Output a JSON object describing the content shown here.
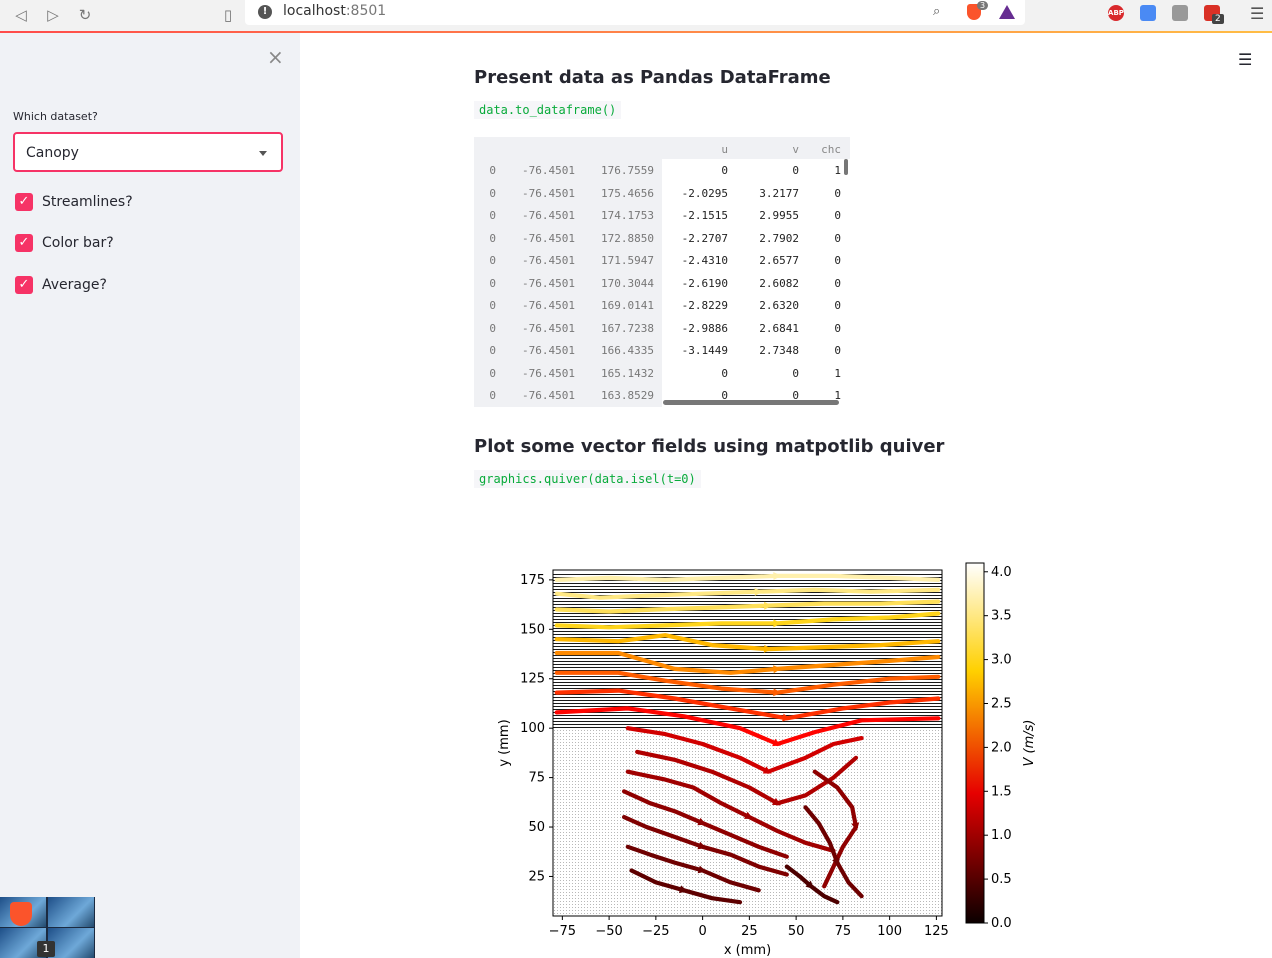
{
  "browser": {
    "url_host": "localhost",
    "url_port": ":8501",
    "brave_badge": "3",
    "ext_abp": "ABP",
    "ext_badge": "2"
  },
  "sidebar": {
    "select_label": "Which dataset?",
    "select_value": "Canopy",
    "checkboxes": [
      {
        "label": "Streamlines?",
        "checked": true
      },
      {
        "label": "Color bar?",
        "checked": true
      },
      {
        "label": "Average?",
        "checked": true
      }
    ],
    "taskbar_count": "1"
  },
  "main": {
    "section1_title": "Present data as Pandas DataFrame",
    "section1_code": "data.to_dataframe()",
    "section2_title": "Plot some vector fields using matpotlib quiver",
    "section2_code": "graphics.quiver(data.isel(t=0)"
  },
  "dataframe": {
    "columns": [
      "u",
      "v",
      "chc"
    ],
    "rows": [
      [
        "0",
        "-76.4501",
        "176.7559",
        "0",
        "0",
        "1"
      ],
      [
        "0",
        "-76.4501",
        "175.4656",
        "-2.0295",
        "3.2177",
        "0"
      ],
      [
        "0",
        "-76.4501",
        "174.1753",
        "-2.1515",
        "2.9955",
        "0"
      ],
      [
        "0",
        "-76.4501",
        "172.8850",
        "-2.2707",
        "2.7902",
        "0"
      ],
      [
        "0",
        "-76.4501",
        "171.5947",
        "-2.4310",
        "2.6577",
        "0"
      ],
      [
        "0",
        "-76.4501",
        "170.3044",
        "-2.6190",
        "2.6082",
        "0"
      ],
      [
        "0",
        "-76.4501",
        "169.0141",
        "-2.8229",
        "2.6320",
        "0"
      ],
      [
        "0",
        "-76.4501",
        "167.7238",
        "-2.9886",
        "2.6841",
        "0"
      ],
      [
        "0",
        "-76.4501",
        "166.4335",
        "-3.1449",
        "2.7348",
        "0"
      ],
      [
        "0",
        "-76.4501",
        "165.1432",
        "0",
        "0",
        "1"
      ],
      [
        "0",
        "-76.4501",
        "163.8529",
        "0",
        "0",
        "1"
      ]
    ]
  },
  "chart_data": {
    "type": "scatter",
    "xlabel": "x (mm)",
    "ylabel": "y (mm)",
    "xlim": [
      -80,
      128
    ],
    "ylim": [
      5,
      180
    ],
    "xticks": [
      -75,
      -50,
      -25,
      0,
      25,
      50,
      75,
      100,
      125
    ],
    "yticks": [
      25,
      50,
      75,
      100,
      125,
      150,
      175
    ],
    "colorbar": {
      "label": "V (m/s)",
      "ticks": [
        0.0,
        0.5,
        1.0,
        1.5,
        2.0,
        2.5,
        3.0,
        3.5,
        4.0
      ],
      "tick_labels": [
        "0.0",
        "0.5",
        "1.0",
        "1.5",
        "2.0",
        "2.5",
        "3.0",
        "3.5",
        "4.0"
      ],
      "range": [
        0,
        4.1
      ],
      "colormap": "hot"
    },
    "canopy_top_y": 100,
    "canopy_x_range": [
      -45,
      90
    ],
    "field_x_range": [
      -80,
      128
    ],
    "field_y_range": [
      5,
      178
    ],
    "streamlines": [
      {
        "v": 3.7,
        "points": [
          [
            -78,
            175
          ],
          [
            -50,
            176
          ],
          [
            -20,
            175
          ],
          [
            10,
            176
          ],
          [
            40,
            177
          ],
          [
            70,
            177
          ],
          [
            100,
            176
          ],
          [
            126,
            175
          ]
        ]
      },
      {
        "v": 3.5,
        "points": [
          [
            -78,
            168
          ],
          [
            -55,
            166
          ],
          [
            -30,
            167
          ],
          [
            0,
            168
          ],
          [
            30,
            169
          ],
          [
            60,
            170
          ],
          [
            90,
            169
          ],
          [
            126,
            170
          ]
        ]
      },
      {
        "v": 3.3,
        "points": [
          [
            -78,
            160
          ],
          [
            -50,
            159
          ],
          [
            -25,
            160
          ],
          [
            5,
            161
          ],
          [
            35,
            162
          ],
          [
            65,
            163
          ],
          [
            95,
            163
          ],
          [
            126,
            164
          ]
        ]
      },
      {
        "v": 3.0,
        "points": [
          [
            -78,
            152
          ],
          [
            -50,
            151
          ],
          [
            -20,
            152
          ],
          [
            10,
            153
          ],
          [
            40,
            153
          ],
          [
            70,
            155
          ],
          [
            100,
            156
          ],
          [
            126,
            158
          ]
        ]
      },
      {
        "v": 2.7,
        "points": [
          [
            -78,
            145
          ],
          [
            -45,
            144
          ],
          [
            -20,
            147
          ],
          [
            5,
            142
          ],
          [
            35,
            140
          ],
          [
            65,
            141
          ],
          [
            95,
            142
          ],
          [
            126,
            144
          ]
        ]
      },
      {
        "v": 2.4,
        "points": [
          [
            -78,
            138
          ],
          [
            -45,
            138
          ],
          [
            -15,
            130
          ],
          [
            15,
            128
          ],
          [
            40,
            130
          ],
          [
            70,
            132
          ],
          [
            100,
            134
          ],
          [
            126,
            136
          ]
        ]
      },
      {
        "v": 2.1,
        "points": [
          [
            -78,
            128
          ],
          [
            -45,
            128
          ],
          [
            -20,
            124
          ],
          [
            10,
            120
          ],
          [
            40,
            118
          ],
          [
            70,
            122
          ],
          [
            100,
            125
          ],
          [
            126,
            126
          ]
        ]
      },
      {
        "v": 1.8,
        "points": [
          [
            -78,
            118
          ],
          [
            -45,
            119
          ],
          [
            -15,
            115
          ],
          [
            15,
            110
          ],
          [
            45,
            105
          ],
          [
            75,
            110
          ],
          [
            100,
            113
          ],
          [
            126,
            115
          ]
        ]
      },
      {
        "v": 1.5,
        "points": [
          [
            -78,
            108
          ],
          [
            -40,
            110
          ],
          [
            -10,
            106
          ],
          [
            20,
            100
          ],
          [
            40,
            92
          ],
          [
            60,
            98
          ],
          [
            85,
            104
          ],
          [
            126,
            105
          ]
        ]
      },
      {
        "v": 1.2,
        "points": [
          [
            -40,
            100
          ],
          [
            -20,
            97
          ],
          [
            0,
            92
          ],
          [
            20,
            85
          ],
          [
            35,
            78
          ],
          [
            55,
            85
          ],
          [
            70,
            92
          ],
          [
            85,
            95
          ]
        ]
      },
      {
        "v": 1.0,
        "points": [
          [
            -35,
            88
          ],
          [
            -15,
            84
          ],
          [
            5,
            78
          ],
          [
            25,
            70
          ],
          [
            40,
            62
          ],
          [
            55,
            66
          ],
          [
            70,
            75
          ],
          [
            82,
            85
          ]
        ]
      },
      {
        "v": 0.9,
        "points": [
          [
            -40,
            78
          ],
          [
            -20,
            74
          ],
          [
            -5,
            70
          ],
          [
            10,
            62
          ],
          [
            25,
            55
          ],
          [
            40,
            48
          ],
          [
            55,
            42
          ],
          [
            70,
            38
          ]
        ]
      },
      {
        "v": 0.8,
        "points": [
          [
            -42,
            68
          ],
          [
            -28,
            62
          ],
          [
            -15,
            58
          ],
          [
            0,
            52
          ],
          [
            15,
            46
          ],
          [
            30,
            40
          ],
          [
            45,
            35
          ]
        ]
      },
      {
        "v": 0.7,
        "points": [
          [
            -42,
            55
          ],
          [
            -30,
            50
          ],
          [
            -15,
            45
          ],
          [
            0,
            40
          ],
          [
            15,
            36
          ],
          [
            30,
            30
          ],
          [
            45,
            26
          ]
        ]
      },
      {
        "v": 0.6,
        "points": [
          [
            -40,
            40
          ],
          [
            -28,
            36
          ],
          [
            -15,
            32
          ],
          [
            0,
            28
          ],
          [
            15,
            22
          ],
          [
            30,
            18
          ]
        ]
      },
      {
        "v": 0.5,
        "points": [
          [
            -38,
            28
          ],
          [
            -25,
            22
          ],
          [
            -10,
            18
          ],
          [
            5,
            14
          ],
          [
            20,
            12
          ]
        ]
      },
      {
        "v": 0.8,
        "points": [
          [
            60,
            78
          ],
          [
            72,
            70
          ],
          [
            80,
            60
          ],
          [
            82,
            50
          ],
          [
            75,
            40
          ],
          [
            70,
            30
          ],
          [
            65,
            20
          ]
        ]
      },
      {
        "v": 0.6,
        "points": [
          [
            55,
            60
          ],
          [
            62,
            52
          ],
          [
            68,
            42
          ],
          [
            72,
            32
          ],
          [
            78,
            22
          ],
          [
            85,
            15
          ]
        ]
      },
      {
        "v": 0.4,
        "points": [
          [
            45,
            30
          ],
          [
            52,
            25
          ],
          [
            58,
            20
          ],
          [
            65,
            15
          ],
          [
            72,
            12
          ]
        ]
      }
    ]
  }
}
